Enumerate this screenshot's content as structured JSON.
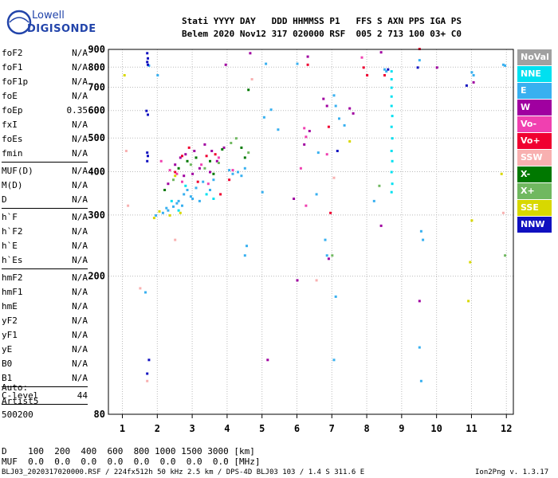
{
  "logo": {
    "line1": "Lowell",
    "line2": "DIGISONDE"
  },
  "header": {
    "labels": "Stati YYYY DAY   DDD HHMMSS P1   FFS S AXN PPS IGA PS",
    "values": "Belem 2020 Nov12 317 020000 RSF  005 2 713 100 03+ C0"
  },
  "params": [
    {
      "name": "foF2",
      "value": "N/A"
    },
    {
      "name": "foF1",
      "value": "N/A"
    },
    {
      "name": "foF1p",
      "value": "N/A"
    },
    {
      "name": "foE",
      "value": "N/A"
    },
    {
      "name": "foEp",
      "value": "0.35"
    },
    {
      "name": "fxI",
      "value": "N/A"
    },
    {
      "name": "foEs",
      "value": "N/A"
    },
    {
      "name": "fmin",
      "value": "N/A"
    },
    {
      "name": "MUF(D)",
      "value": "N/A"
    },
    {
      "name": "M(D)",
      "value": "N/A"
    },
    {
      "name": "D",
      "value": "N/A"
    },
    {
      "name": "h`F",
      "value": "N/A"
    },
    {
      "name": "h`F2",
      "value": "N/A"
    },
    {
      "name": "h`E",
      "value": "N/A"
    },
    {
      "name": "h`Es",
      "value": "N/A"
    },
    {
      "name": "hmF2",
      "value": "N/A"
    },
    {
      "name": "hmF1",
      "value": "N/A"
    },
    {
      "name": "hmE",
      "value": "N/A"
    },
    {
      "name": "yF2",
      "value": "N/A"
    },
    {
      "name": "yF1",
      "value": "N/A"
    },
    {
      "name": "yE",
      "value": "N/A"
    },
    {
      "name": "B0",
      "value": "N/A"
    },
    {
      "name": "B1",
      "value": "N/A"
    },
    {
      "name": "C-level",
      "value": "44"
    }
  ],
  "auto": {
    "label": "Auto:",
    "program": "Artist5",
    "version": "500200"
  },
  "legend": [
    {
      "label": "NoVal",
      "color": "#a0a0a0"
    },
    {
      "label": "NNE",
      "color": "#00e0f0"
    },
    {
      "label": "E",
      "color": "#38b0f0"
    },
    {
      "label": "W",
      "color": "#a000a0"
    },
    {
      "label": "Vo-",
      "color": "#f040b0"
    },
    {
      "label": "Vo+",
      "color": "#f00030"
    },
    {
      "label": "SSW",
      "color": "#f8b0b0"
    },
    {
      "label": "X-",
      "color": "#007800"
    },
    {
      "label": "X+",
      "color": "#70b860"
    },
    {
      "label": "SSE",
      "color": "#d8d800"
    },
    {
      "label": "NNW",
      "color": "#1010c0"
    }
  ],
  "footer": {
    "d_row": "D    100  200  400  600  800 1000 1500 3000 [km]",
    "muf_row": "MUF  0.0  0.0  0.0  0.0  0.0  0.0  0.0  0.0 [MHz]",
    "file": "BLJ03_2020317020000.RSF / 224fx512h 50 kHz 2.5 km / DPS-4D BLJ03 103 / 1.4 S 311.6 E",
    "version": "Ion2Png v. 1.3.17"
  },
  "chart_data": {
    "type": "scatter",
    "title": "",
    "xlabel": "",
    "ylabel": "",
    "xlim": [
      0.6,
      12.2
    ],
    "ylim": [
      80,
      900
    ],
    "y_scale": "log",
    "x_ticks": [
      "1",
      "2",
      "3",
      "4",
      "5",
      "6",
      "7",
      "8",
      "9",
      "10",
      "11",
      "12"
    ],
    "y_ticks": [
      "80",
      "200",
      "300",
      "400",
      "500",
      "600",
      "700",
      "800",
      "900"
    ],
    "grid": "dotted",
    "legend_position": "right",
    "series": [
      {
        "name": "E",
        "color": "#38b0f0",
        "points": [
          [
            2.15,
            305
          ],
          [
            2.3,
            310
          ],
          [
            2.45,
            318
          ],
          [
            2.55,
            325
          ],
          [
            2.6,
            330
          ],
          [
            2.75,
            345
          ],
          [
            2.85,
            355
          ],
          [
            2.95,
            340
          ],
          [
            3.1,
            360
          ],
          [
            3.2,
            330
          ],
          [
            3.3,
            375
          ],
          [
            3.5,
            355
          ],
          [
            3.6,
            380
          ],
          [
            4.05,
            405
          ],
          [
            4.15,
            395
          ],
          [
            4.3,
            400
          ],
          [
            4.4,
            390
          ],
          [
            4.5,
            410
          ],
          [
            1.95,
            300
          ],
          [
            2.25,
            315
          ],
          [
            2.7,
            320
          ],
          [
            3.0,
            335
          ],
          [
            5.1,
            820
          ],
          [
            5.05,
            575
          ],
          [
            5.25,
            605
          ],
          [
            5.45,
            530
          ],
          [
            6.0,
            820
          ],
          [
            6.55,
            345
          ],
          [
            6.6,
            455
          ],
          [
            6.8,
            255
          ],
          [
            6.85,
            230
          ],
          [
            7.05,
            665
          ],
          [
            7.1,
            620
          ],
          [
            7.2,
            570
          ],
          [
            7.35,
            545
          ],
          [
            7.1,
            175
          ],
          [
            8.2,
            330
          ],
          [
            8.5,
            790
          ],
          [
            8.55,
            780
          ],
          [
            9.5,
            840
          ],
          [
            9.55,
            270
          ],
          [
            9.6,
            255
          ],
          [
            9.5,
            125
          ],
          [
            9.55,
            100
          ],
          [
            11.0,
            775
          ],
          [
            11.05,
            760
          ],
          [
            11.9,
            815
          ],
          [
            11.95,
            810
          ],
          [
            4.55,
            245
          ],
          [
            4.5,
            230
          ],
          [
            7.05,
            115
          ],
          [
            1.65,
            180
          ],
          [
            1.75,
            810
          ],
          [
            2.0,
            760
          ],
          [
            5.0,
            350
          ]
        ]
      },
      {
        "name": "NNE",
        "color": "#00e0f0",
        "points": [
          [
            8.7,
            780
          ],
          [
            8.7,
            740
          ],
          [
            8.7,
            700
          ],
          [
            8.7,
            660
          ],
          [
            8.7,
            620
          ],
          [
            8.72,
            580
          ],
          [
            8.7,
            540
          ],
          [
            8.72,
            500
          ],
          [
            8.7,
            460
          ],
          [
            8.72,
            430
          ],
          [
            8.7,
            400
          ],
          [
            8.72,
            370
          ],
          [
            8.7,
            350
          ],
          [
            2.4,
            330
          ],
          [
            2.6,
            310
          ],
          [
            3.4,
            345
          ],
          [
            3.6,
            335
          ],
          [
            2.8,
            365
          ]
        ]
      },
      {
        "name": "W",
        "color": "#a000a0",
        "points": [
          [
            2.3,
            370
          ],
          [
            2.5,
            420
          ],
          [
            2.65,
            440
          ],
          [
            2.8,
            450
          ],
          [
            3.05,
            460
          ],
          [
            3.2,
            410
          ],
          [
            3.35,
            480
          ],
          [
            3.55,
            460
          ],
          [
            3.7,
            430
          ],
          [
            3.9,
            470
          ],
          [
            3.0,
            395
          ],
          [
            2.75,
            390
          ],
          [
            3.5,
            400
          ],
          [
            5.9,
            335
          ],
          [
            6.0,
            195
          ],
          [
            6.2,
            480
          ],
          [
            6.35,
            525
          ],
          [
            6.3,
            860
          ],
          [
            6.75,
            650
          ],
          [
            6.85,
            620
          ],
          [
            6.9,
            225
          ],
          [
            7.5,
            610
          ],
          [
            7.6,
            590
          ],
          [
            8.4,
            885
          ],
          [
            8.4,
            280
          ],
          [
            10.0,
            800
          ],
          [
            11.05,
            725
          ],
          [
            9.5,
            170
          ],
          [
            3.95,
            815
          ],
          [
            4.65,
            880
          ],
          [
            5.15,
            115
          ]
        ]
      },
      {
        "name": "Vo-",
        "color": "#f040b0",
        "points": [
          [
            2.35,
            405
          ],
          [
            2.55,
            395
          ],
          [
            2.7,
            375
          ],
          [
            3.25,
            420
          ],
          [
            3.45,
            370
          ],
          [
            3.75,
            440
          ],
          [
            4.15,
            405
          ],
          [
            2.1,
            430
          ],
          [
            6.2,
            535
          ],
          [
            6.25,
            505
          ],
          [
            6.1,
            410
          ],
          [
            6.85,
            450
          ],
          [
            7.85,
            855
          ],
          [
            6.25,
            320
          ]
        ]
      },
      {
        "name": "Vo+",
        "color": "#f00030",
        "points": [
          [
            2.5,
            400
          ],
          [
            2.7,
            445
          ],
          [
            2.9,
            470
          ],
          [
            3.15,
            375
          ],
          [
            3.4,
            445
          ],
          [
            3.65,
            450
          ],
          [
            4.05,
            380
          ],
          [
            3.8,
            345
          ],
          [
            6.95,
            305
          ],
          [
            6.9,
            540
          ],
          [
            7.9,
            800
          ],
          [
            8.0,
            760
          ],
          [
            8.5,
            760
          ],
          [
            9.5,
            905
          ],
          [
            6.3,
            815
          ]
        ]
      },
      {
        "name": "SSW",
        "color": "#f8b0b0",
        "points": [
          [
            1.15,
            320
          ],
          [
            1.1,
            460
          ],
          [
            1.5,
            185
          ],
          [
            1.7,
            100
          ],
          [
            2.5,
            255
          ],
          [
            4.7,
            740
          ],
          [
            6.55,
            195
          ],
          [
            7.05,
            385
          ],
          [
            11.9,
            305
          ]
        ]
      },
      {
        "name": "X-",
        "color": "#007800",
        "points": [
          [
            2.6,
            410
          ],
          [
            2.85,
            430
          ],
          [
            3.1,
            440
          ],
          [
            3.5,
            430
          ],
          [
            3.85,
            465
          ],
          [
            4.4,
            470
          ],
          [
            4.5,
            440
          ],
          [
            2.2,
            355
          ],
          [
            4.6,
            690
          ],
          [
            3.6,
            395
          ]
        ]
      },
      {
        "name": "X+",
        "color": "#70b860",
        "points": [
          [
            2.45,
            380
          ],
          [
            2.95,
            420
          ],
          [
            3.35,
            410
          ],
          [
            3.75,
            425
          ],
          [
            4.1,
            485
          ],
          [
            4.25,
            500
          ],
          [
            4.6,
            455
          ],
          [
            7.0,
            230
          ],
          [
            8.35,
            365
          ],
          [
            11.95,
            230
          ]
        ]
      },
      {
        "name": "SSE",
        "color": "#d8d800",
        "points": [
          [
            1.9,
            295
          ],
          [
            2.05,
            308
          ],
          [
            2.35,
            300
          ],
          [
            2.65,
            305
          ],
          [
            11.0,
            290
          ],
          [
            10.95,
            220
          ],
          [
            11.85,
            395
          ],
          [
            10.9,
            170
          ],
          [
            1.05,
            760
          ],
          [
            7.5,
            490
          ],
          [
            2.5,
            390
          ]
        ]
      },
      {
        "name": "NNW",
        "color": "#1010c0",
        "points": [
          [
            1.7,
            880
          ],
          [
            1.72,
            850
          ],
          [
            1.7,
            830
          ],
          [
            1.72,
            815
          ],
          [
            1.68,
            600
          ],
          [
            1.72,
            585
          ],
          [
            1.7,
            455
          ],
          [
            1.72,
            445
          ],
          [
            1.7,
            430
          ],
          [
            1.75,
            115
          ],
          [
            1.7,
            105
          ],
          [
            7.15,
            460
          ],
          [
            8.6,
            790
          ],
          [
            10.85,
            710
          ],
          [
            9.45,
            800
          ]
        ]
      }
    ]
  }
}
